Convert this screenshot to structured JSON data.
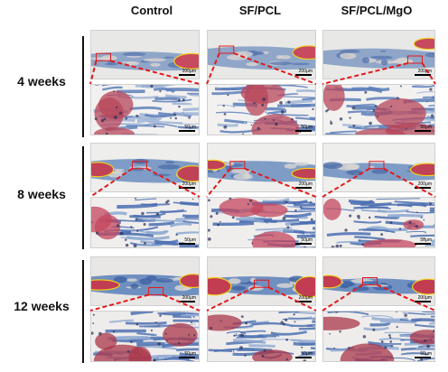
{
  "columns": [
    "Control",
    "SF/PCL",
    "SF/PCL/MgO"
  ],
  "rows": [
    "4 weeks",
    "8 weeks",
    "12 weeks"
  ],
  "scalebars": {
    "overview": "200μm",
    "zoom": "50μm"
  }
}
